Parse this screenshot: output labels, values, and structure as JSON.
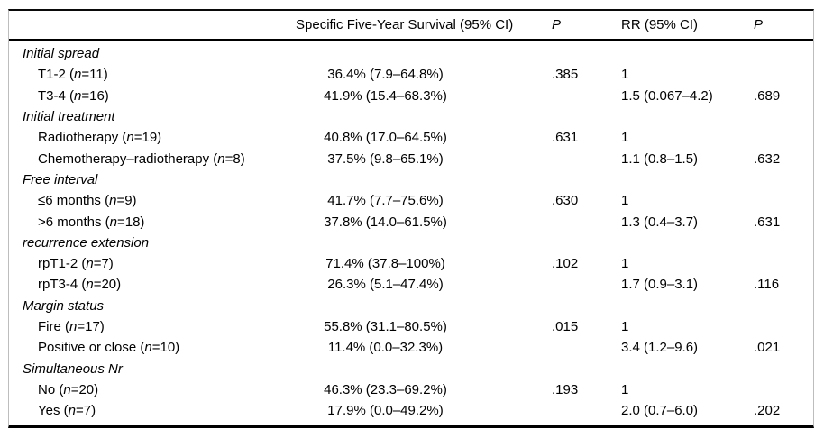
{
  "table": {
    "columns": [
      "",
      "Specific Five-Year Survival (95% CI)",
      "P",
      "RR (95% CI)",
      "P"
    ],
    "sections": [
      {
        "header": "Initial spread",
        "rows": [
          {
            "label_pre": "T1-2 (",
            "label_n": "n",
            "label_post": "=11)",
            "survival": "36.4% (7.9–64.8%)",
            "p1": ".385",
            "rr": "1",
            "p2": ""
          },
          {
            "label_pre": "T3-4 (",
            "label_n": "n",
            "label_post": "=16)",
            "survival": "41.9% (15.4–68.3%)",
            "p1": "",
            "rr": "1.5 (0.067–4.2)",
            "p2": ".689"
          }
        ]
      },
      {
        "header": "Initial treatment",
        "rows": [
          {
            "label_pre": "Radiotherapy (",
            "label_n": "n",
            "label_post": "=19)",
            "survival": "40.8% (17.0–64.5%)",
            "p1": ".631",
            "rr": "1",
            "p2": ""
          },
          {
            "label_pre": "Chemotherapy–radiotherapy (",
            "label_n": "n",
            "label_post": "=8)",
            "survival": "37.5% (9.8–65.1%)",
            "p1": "",
            "rr": "1.1 (0.8–1.5)",
            "p2": ".632"
          }
        ]
      },
      {
        "header": "Free interval",
        "rows": [
          {
            "label_pre": "≤6 months (",
            "label_n": "n",
            "label_post": "=9)",
            "survival": "41.7% (7.7–75.6%)",
            "p1": ".630",
            "rr": "1",
            "p2": ""
          },
          {
            "label_pre": ">6 months (",
            "label_n": "n",
            "label_post": "=18)",
            "survival": "37.8% (14.0–61.5%)",
            "p1": "",
            "rr": "1.3 (0.4–3.7)",
            "p2": ".631"
          }
        ]
      },
      {
        "header": "recurrence extension",
        "rows": [
          {
            "label_pre": "rpT1-2 (",
            "label_n": "n",
            "label_post": "=7)",
            "survival": "71.4% (37.8–100%)",
            "p1": ".102",
            "rr": "1",
            "p2": ""
          },
          {
            "label_pre": "rpT3-4 (",
            "label_n": "n",
            "label_post": "=20)",
            "survival": "26.3% (5.1–47.4%)",
            "p1": "",
            "rr": "1.7 (0.9–3.1)",
            "p2": ".116"
          }
        ]
      },
      {
        "header": "Margin status",
        "rows": [
          {
            "label_pre": "Fire (",
            "label_n": "n",
            "label_post": "=17)",
            "survival": "55.8% (31.1–80.5%)",
            "p1": ".015",
            "rr": "1",
            "p2": ""
          },
          {
            "label_pre": "Positive or close (",
            "label_n": "n",
            "label_post": "=10)",
            "survival": "11.4% (0.0–32.3%)",
            "p1": "",
            "rr": "3.4 (1.2–9.6)",
            "p2": ".021"
          }
        ]
      },
      {
        "header": "Simultaneous Nr",
        "rows": [
          {
            "label_pre": "No (",
            "label_n": "n",
            "label_post": "=20)",
            "survival": "46.3% (23.3–69.2%)",
            "p1": ".193",
            "rr": "1",
            "p2": ""
          },
          {
            "label_pre": "Yes (",
            "label_n": "n",
            "label_post": "=7)",
            "survival": "17.9% (0.0–49.2%)",
            "p1": "",
            "rr": "2.0 (0.7–6.0)",
            "p2": ".202"
          }
        ]
      }
    ]
  },
  "colors": {
    "rule": "#000000",
    "frame_edge": "#bdbdbd",
    "text": "#000000",
    "background": "#ffffff"
  }
}
